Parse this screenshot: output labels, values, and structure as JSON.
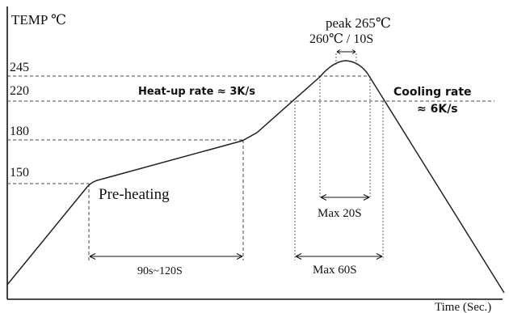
{
  "chart_data": {
    "type": "line",
    "title": "",
    "ylabel": "TEMP ℃",
    "xlabel": "Time (Sec.)",
    "y_ticks": [
      "245",
      "220",
      "180",
      "150"
    ],
    "grid": false,
    "series": [
      {
        "points": [
          {
            "t": 0,
            "temp": 55
          },
          {
            "t": 45,
            "temp": 150
          },
          {
            "t": 60,
            "temp": 153
          },
          {
            "t": 150,
            "temp": 183
          },
          {
            "t": 178,
            "temp": 188
          },
          {
            "t": 250,
            "temp": 246
          },
          {
            "t": 262,
            "temp": 255
          },
          {
            "t": 282,
            "temp": 261
          },
          {
            "t": 300,
            "temp": 259
          },
          {
            "t": 316,
            "temp": 246
          },
          {
            "t": 390,
            "temp": 62
          }
        ]
      }
    ],
    "annotations": {
      "peak_line1": "peak 265℃",
      "peak_line2": "260℃ / 10S",
      "heatup": "Heat-up rate ≈ 3K/s",
      "cooling_line1": "Cooling rate",
      "cooling_line2": "≈ 6K/s",
      "preheating": "Pre-heating",
      "preheat_span": "90s~120S",
      "max20": "Max 20S",
      "max60": "Max 60S"
    },
    "colors": {
      "curve": "#222222",
      "axis": "#111111",
      "guide": "#444444"
    }
  }
}
